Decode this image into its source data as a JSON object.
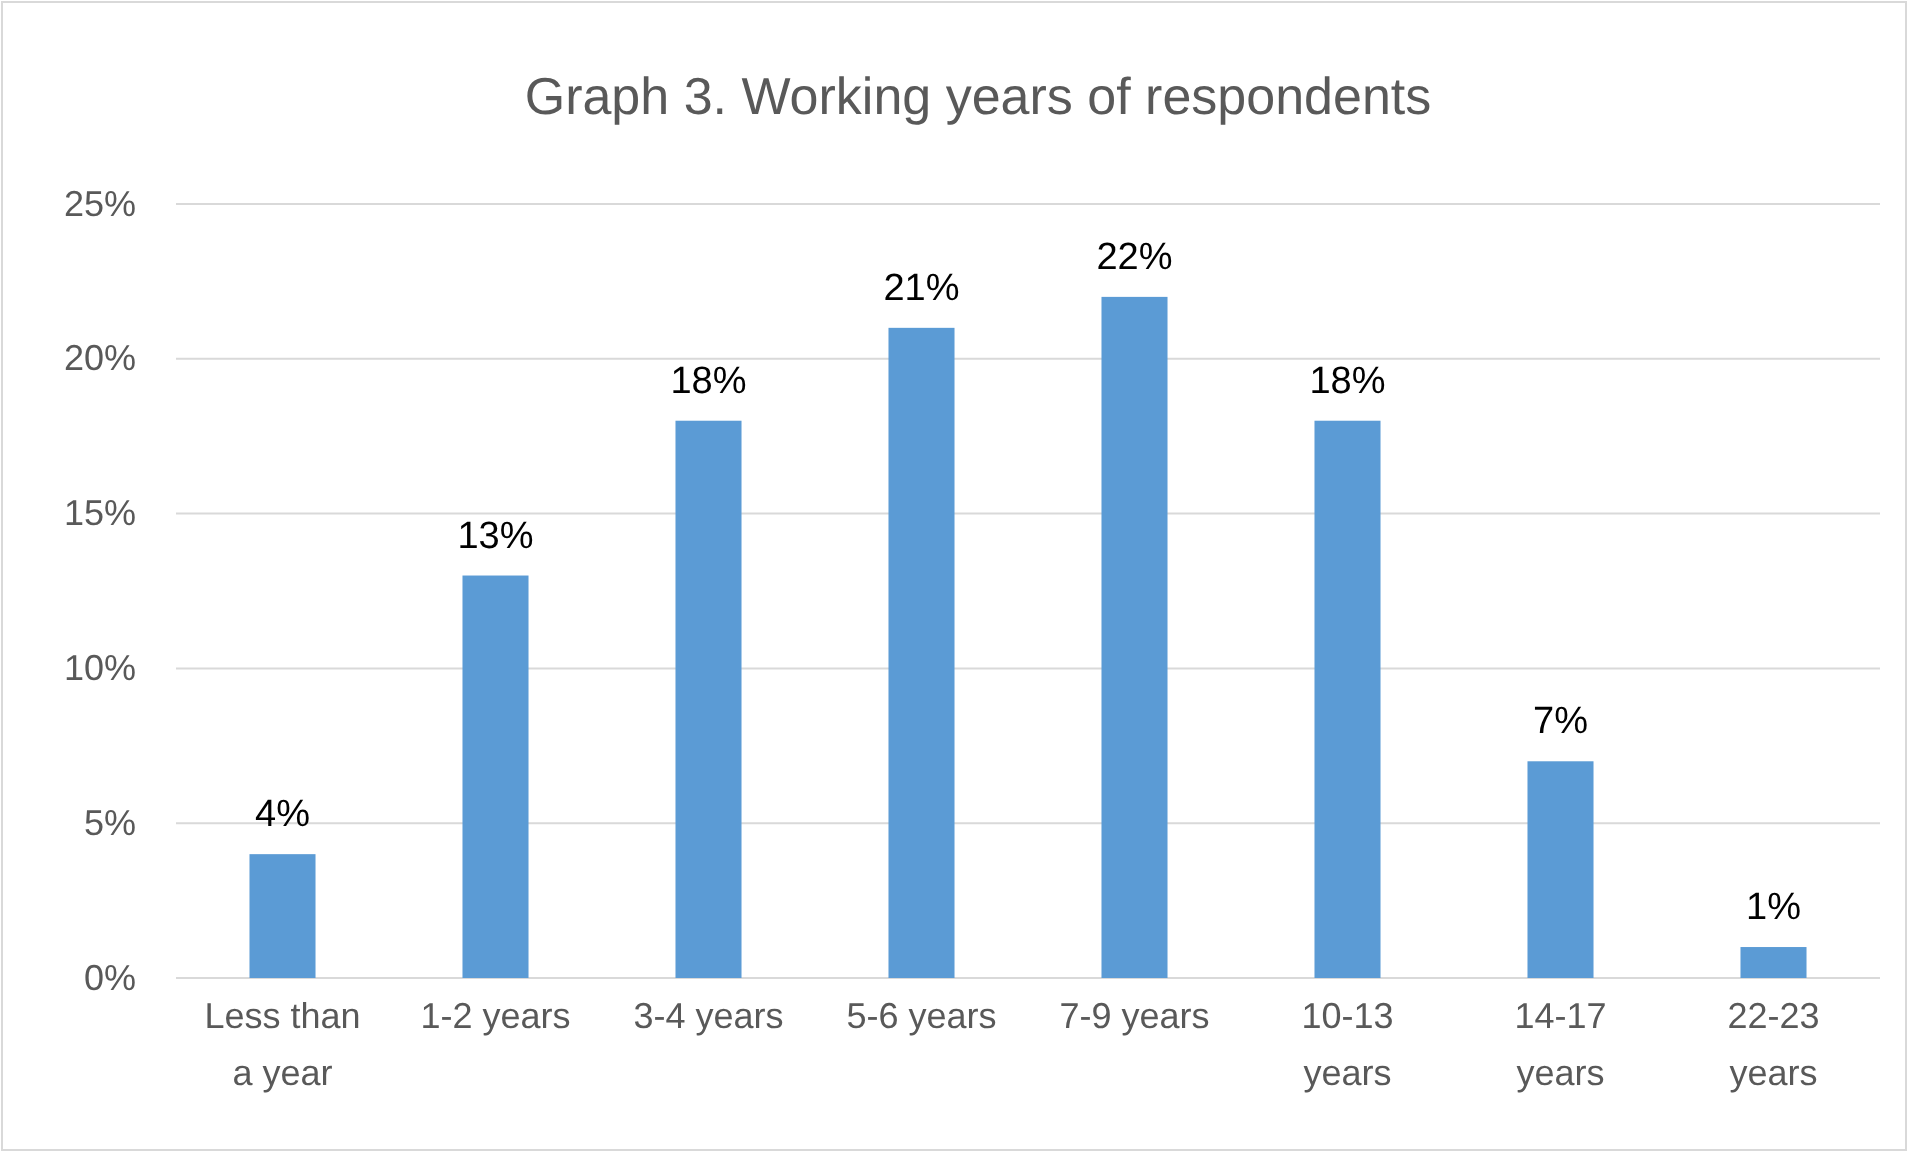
{
  "chart_data": {
    "type": "bar",
    "title": "Graph 3. Working years of respondents",
    "categories": [
      "Less than a year",
      "1-2 years",
      "3-4 years",
      "5-6 years",
      "7-9 years",
      "10-13 years",
      "14-17 years",
      "22-23 years"
    ],
    "values": [
      4,
      13,
      18,
      21,
      22,
      18,
      7,
      1
    ],
    "value_labels": [
      "4%",
      "13%",
      "18%",
      "21%",
      "22%",
      "18%",
      "7%",
      "1%"
    ],
    "color": "#5b9bd5",
    "ylim": [
      0,
      25
    ],
    "yticks": [
      {
        "value": 0,
        "label": "0%"
      },
      {
        "value": 5,
        "label": "5%"
      },
      {
        "value": 10,
        "label": "10%"
      },
      {
        "value": 15,
        "label": "15%"
      },
      {
        "value": 20,
        "label": "20%"
      },
      {
        "value": 25,
        "label": "25%"
      }
    ],
    "grid": "y"
  }
}
